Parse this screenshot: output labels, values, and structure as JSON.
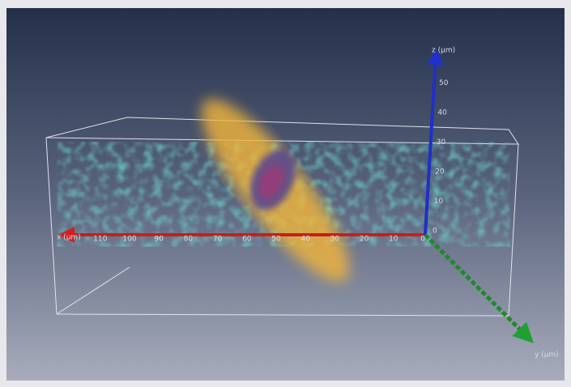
{
  "axes": {
    "x": {
      "label": "x (µm)",
      "ticks": [
        0,
        10,
        20,
        30,
        40,
        50,
        60,
        70,
        80,
        90,
        100,
        110
      ]
    },
    "y": {
      "label": "y (µm)"
    },
    "z": {
      "label": "z (µm)",
      "ticks": [
        0,
        10,
        20,
        30,
        40,
        50
      ]
    }
  }
}
